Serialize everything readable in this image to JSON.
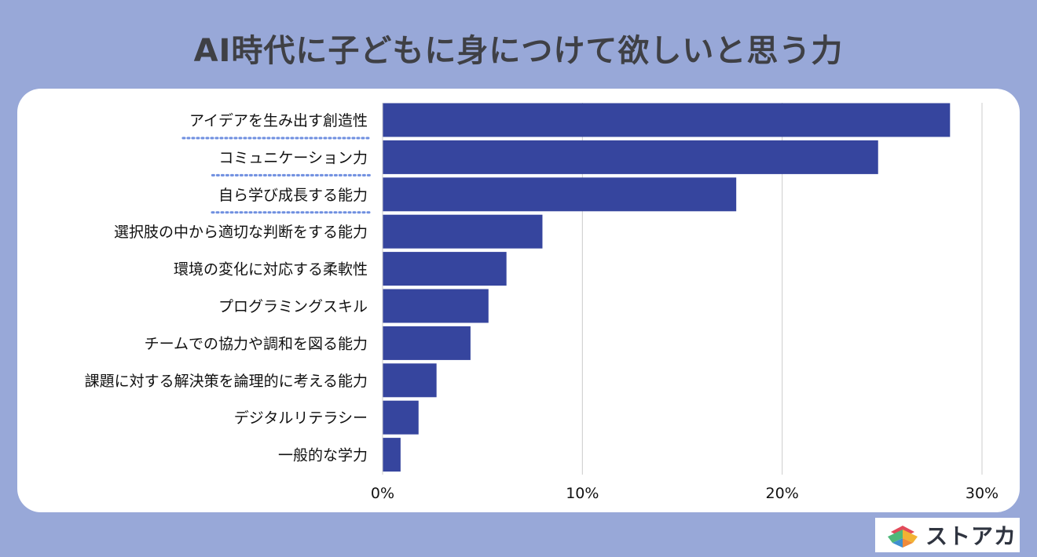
{
  "title": "AI時代に子どもに身につけて欲しいと思う力",
  "logo": {
    "text": "ストアカ"
  },
  "colors": {
    "background": "#98a8d8",
    "bar": "#36459e",
    "highlight_underline": "#6f8fe0",
    "grid": "#cccccc",
    "text": "#111111"
  },
  "chart_data": {
    "type": "bar",
    "orientation": "horizontal",
    "categories": [
      "アイデアを生み出す創造性",
      "コミュニケーション力",
      "自ら学び成長する能力",
      "選択肢の中から適切な判断をする能力",
      "環境の変化に対応する柔軟性",
      "プログラミングスキル",
      "チームでの協力や調和を図る能力",
      "課題に対する解決策を論理的に考える能力",
      "デジタルリテラシー",
      "一般的な学力"
    ],
    "values": [
      28.4,
      24.8,
      17.7,
      8.0,
      6.2,
      5.3,
      4.4,
      2.7,
      1.8,
      0.9
    ],
    "highlighted_top": 3,
    "xlim": [
      0,
      30
    ],
    "x_ticks": [
      "0%",
      "10%",
      "20%",
      "30%"
    ],
    "grid": true
  }
}
